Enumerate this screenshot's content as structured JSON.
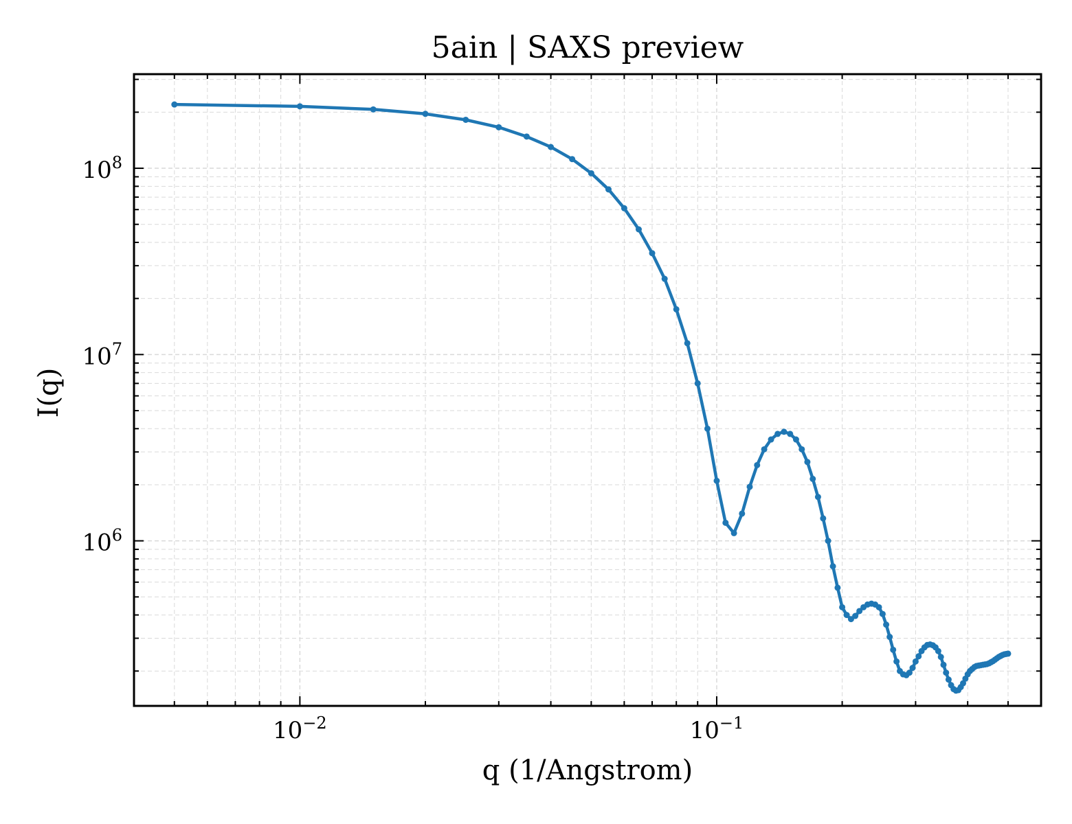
{
  "chart_data": {
    "type": "line",
    "title": "5ain | SAXS preview",
    "xlabel": "q (1/Angstrom)",
    "ylabel": "I(q)",
    "xscale": "log",
    "yscale": "log",
    "xlim": [
      0.004,
      0.6
    ],
    "ylim": [
      130000,
      320000000
    ],
    "grid": true,
    "x_ticks": [
      {
        "value": 0.01,
        "base": "10",
        "exp": "−2"
      },
      {
        "value": 0.1,
        "base": "10",
        "exp": "−1"
      }
    ],
    "y_ticks": [
      {
        "value": 1000000,
        "base": "10",
        "exp": "6"
      },
      {
        "value": 10000000,
        "base": "10",
        "exp": "7"
      },
      {
        "value": 100000000,
        "base": "10",
        "exp": "8"
      }
    ],
    "colors": {
      "line": "#1f77b4",
      "grid": "#d9d9d9",
      "axes": "#000000"
    },
    "series": [
      {
        "x": [
          0.005,
          0.01,
          0.015,
          0.02,
          0.025,
          0.03,
          0.035,
          0.04,
          0.045,
          0.05,
          0.055,
          0.06,
          0.065,
          0.07,
          0.075,
          0.08,
          0.085,
          0.09,
          0.095,
          0.1,
          0.105,
          0.11,
          0.115,
          0.12,
          0.125,
          0.13,
          0.135,
          0.14,
          0.145,
          0.15,
          0.155,
          0.16,
          0.165,
          0.17,
          0.175,
          0.18,
          0.185,
          0.19,
          0.195,
          0.2,
          0.205,
          0.21,
          0.215,
          0.22,
          0.225,
          0.23,
          0.235,
          0.24,
          0.245,
          0.25,
          0.255,
          0.26,
          0.265,
          0.27,
          0.275,
          0.28,
          0.285,
          0.29,
          0.295,
          0.3,
          0.305,
          0.31,
          0.315,
          0.32,
          0.325,
          0.33,
          0.335,
          0.34,
          0.345,
          0.35,
          0.355,
          0.36,
          0.365,
          0.37,
          0.375,
          0.38,
          0.385,
          0.39,
          0.395,
          0.4,
          0.405,
          0.41,
          0.415,
          0.42,
          0.425,
          0.43,
          0.435,
          0.44,
          0.445,
          0.45,
          0.455,
          0.46,
          0.465,
          0.47,
          0.475,
          0.48,
          0.485,
          0.49,
          0.495,
          0.5
        ],
        "y": [
          220000000,
          215000000,
          207000000,
          196000000,
          182000000,
          166000000,
          148000000,
          130000000,
          112000000,
          94000000,
          77000000,
          61000000,
          47000000,
          35000000,
          25500000,
          17500000,
          11500000,
          7000000,
          4000000,
          2100000,
          1250000,
          1100000,
          1400000,
          1950000,
          2550000,
          3100000,
          3500000,
          3750000,
          3850000,
          3750000,
          3500000,
          3100000,
          2650000,
          2150000,
          1720000,
          1320000,
          1000000,
          730000,
          560000,
          440000,
          400000,
          380000,
          395000,
          420000,
          440000,
          455000,
          460000,
          455000,
          440000,
          405000,
          355000,
          305000,
          260000,
          225000,
          200000,
          192000,
          190000,
          196000,
          208000,
          225000,
          240000,
          256000,
          268000,
          276000,
          278000,
          275000,
          268000,
          256000,
          238000,
          216000,
          196000,
          180000,
          168000,
          160000,
          157000,
          158000,
          164000,
          172000,
          182000,
          192000,
          200000,
          205000,
          210000,
          213000,
          214000,
          215000,
          216000,
          217000,
          218000,
          220000,
          223000,
          226000,
          230000,
          234000,
          238000,
          241000,
          244000,
          246000,
          247000,
          248000
        ]
      }
    ]
  }
}
